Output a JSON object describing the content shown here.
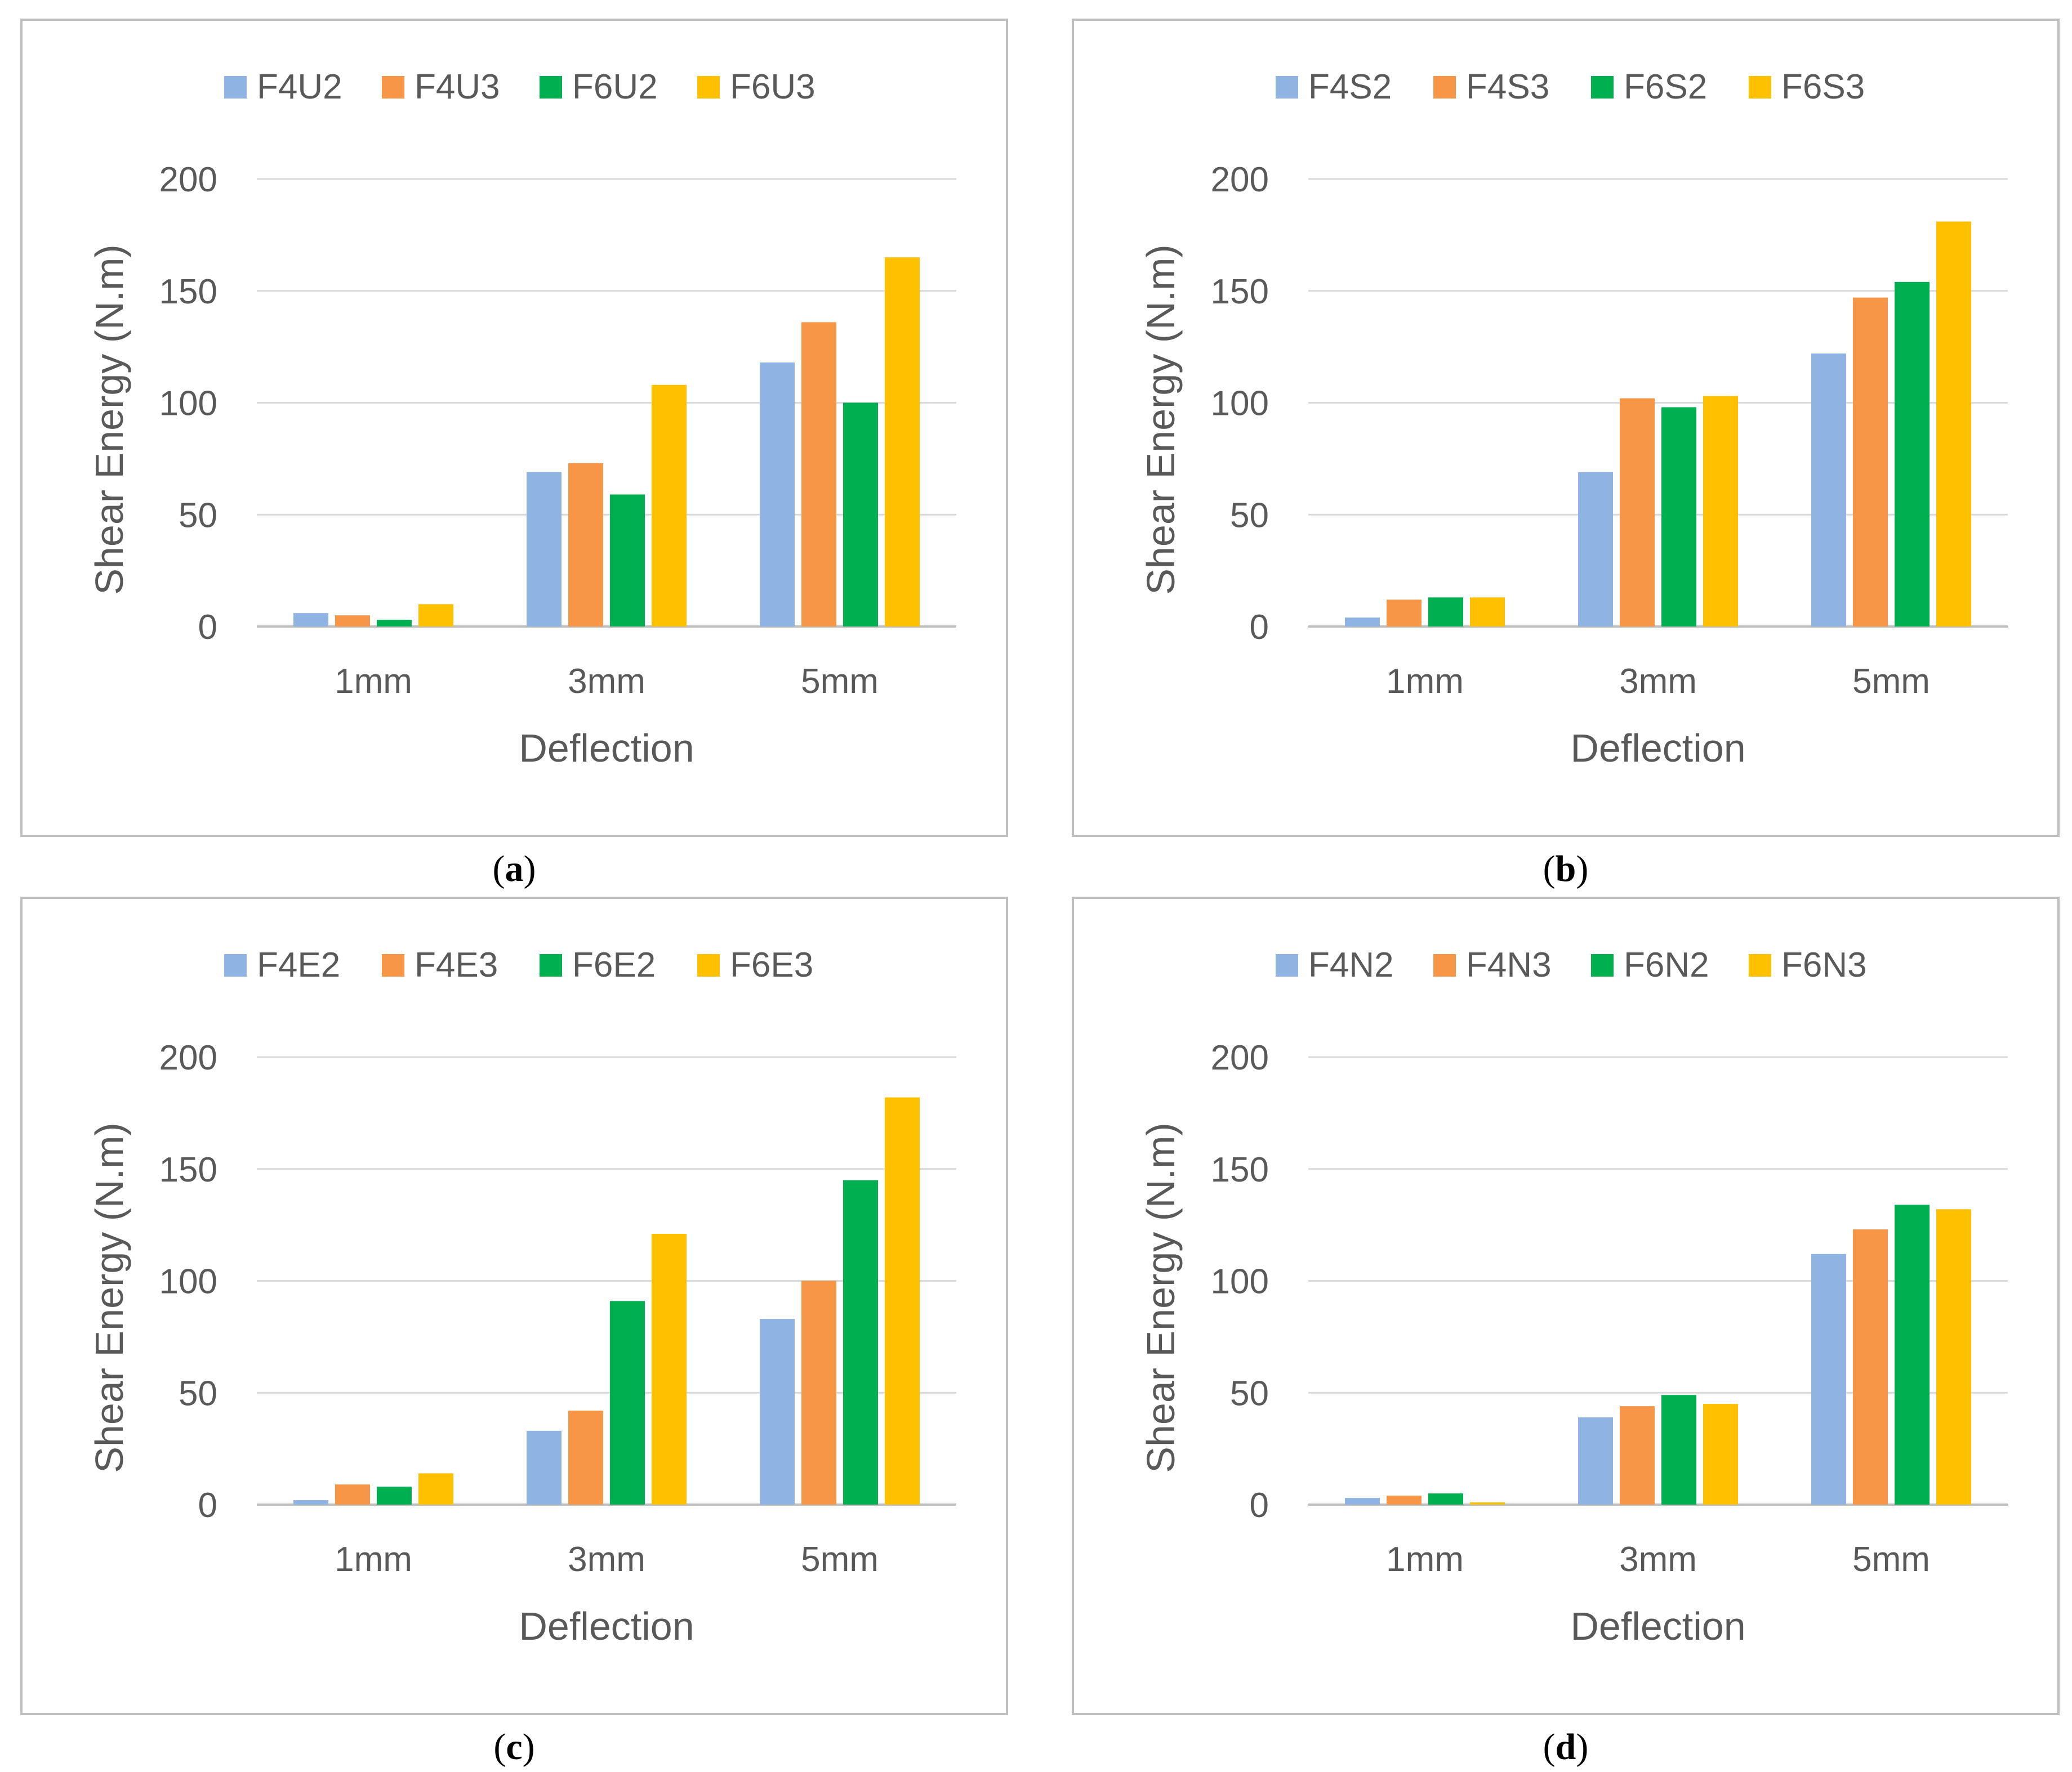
{
  "figure": {
    "colors": [
      "#8FB4E3",
      "#F79646",
      "#00B050",
      "#FFC000"
    ],
    "gridColor": "#D9D9D9",
    "borderColor": "#BFBFBF",
    "textColor": "#595959"
  },
  "chart_data": [
    {
      "type": "bar",
      "caption": "a",
      "categories": [
        "1mm",
        "3mm",
        "5mm"
      ],
      "series": [
        {
          "name": "F4U2",
          "values": [
            6,
            69,
            118
          ]
        },
        {
          "name": "F4U3",
          "values": [
            5,
            73,
            136
          ]
        },
        {
          "name": "F6U2",
          "values": [
            3,
            59,
            100
          ]
        },
        {
          "name": "F6U3",
          "values": [
            10,
            108,
            165
          ]
        }
      ],
      "xlabel": "Deflection",
      "ylabel": "Shear Energy (N.m)",
      "ylim": [
        0,
        200
      ],
      "yticks": [
        "0",
        "50",
        "100",
        "150",
        "200"
      ],
      "legend": "top",
      "grid": true
    },
    {
      "type": "bar",
      "caption": "b",
      "categories": [
        "1mm",
        "3mm",
        "5mm"
      ],
      "series": [
        {
          "name": "F4S2",
          "values": [
            4,
            69,
            122
          ]
        },
        {
          "name": "F4S3",
          "values": [
            12,
            102,
            147
          ]
        },
        {
          "name": "F6S2",
          "values": [
            13,
            98,
            154
          ]
        },
        {
          "name": "F6S3",
          "values": [
            13,
            103,
            181
          ]
        }
      ],
      "xlabel": "Deflection",
      "ylabel": "Shear Energy (N.m)",
      "ylim": [
        0,
        200
      ],
      "yticks": [
        "0",
        "50",
        "100",
        "150",
        "200"
      ],
      "legend": "top",
      "grid": true
    },
    {
      "type": "bar",
      "caption": "c",
      "categories": [
        "1mm",
        "3mm",
        "5mm"
      ],
      "series": [
        {
          "name": "F4E2",
          "values": [
            2,
            33,
            83
          ]
        },
        {
          "name": "F4E3",
          "values": [
            9,
            42,
            100
          ]
        },
        {
          "name": "F6E2",
          "values": [
            8,
            91,
            145
          ]
        },
        {
          "name": "F6E3",
          "values": [
            14,
            121,
            182
          ]
        }
      ],
      "xlabel": "Deflection",
      "ylabel": "Shear Energy (N.m)",
      "ylim": [
        0,
        200
      ],
      "yticks": [
        "0",
        "50",
        "100",
        "150",
        "200"
      ],
      "legend": "top",
      "grid": true
    },
    {
      "type": "bar",
      "caption": "d",
      "categories": [
        "1mm",
        "3mm",
        "5mm"
      ],
      "series": [
        {
          "name": "F4N2",
          "values": [
            3,
            39,
            112
          ]
        },
        {
          "name": "F4N3",
          "values": [
            4,
            44,
            123
          ]
        },
        {
          "name": "F6N2",
          "values": [
            5,
            49,
            134
          ]
        },
        {
          "name": "F6N3",
          "values": [
            1,
            45,
            132
          ]
        }
      ],
      "xlabel": "Deflection",
      "ylabel": "Shear Energy (N.m)",
      "ylim": [
        0,
        200
      ],
      "yticks": [
        "0",
        "50",
        "100",
        "150",
        "200"
      ],
      "legend": "top",
      "grid": true
    }
  ]
}
